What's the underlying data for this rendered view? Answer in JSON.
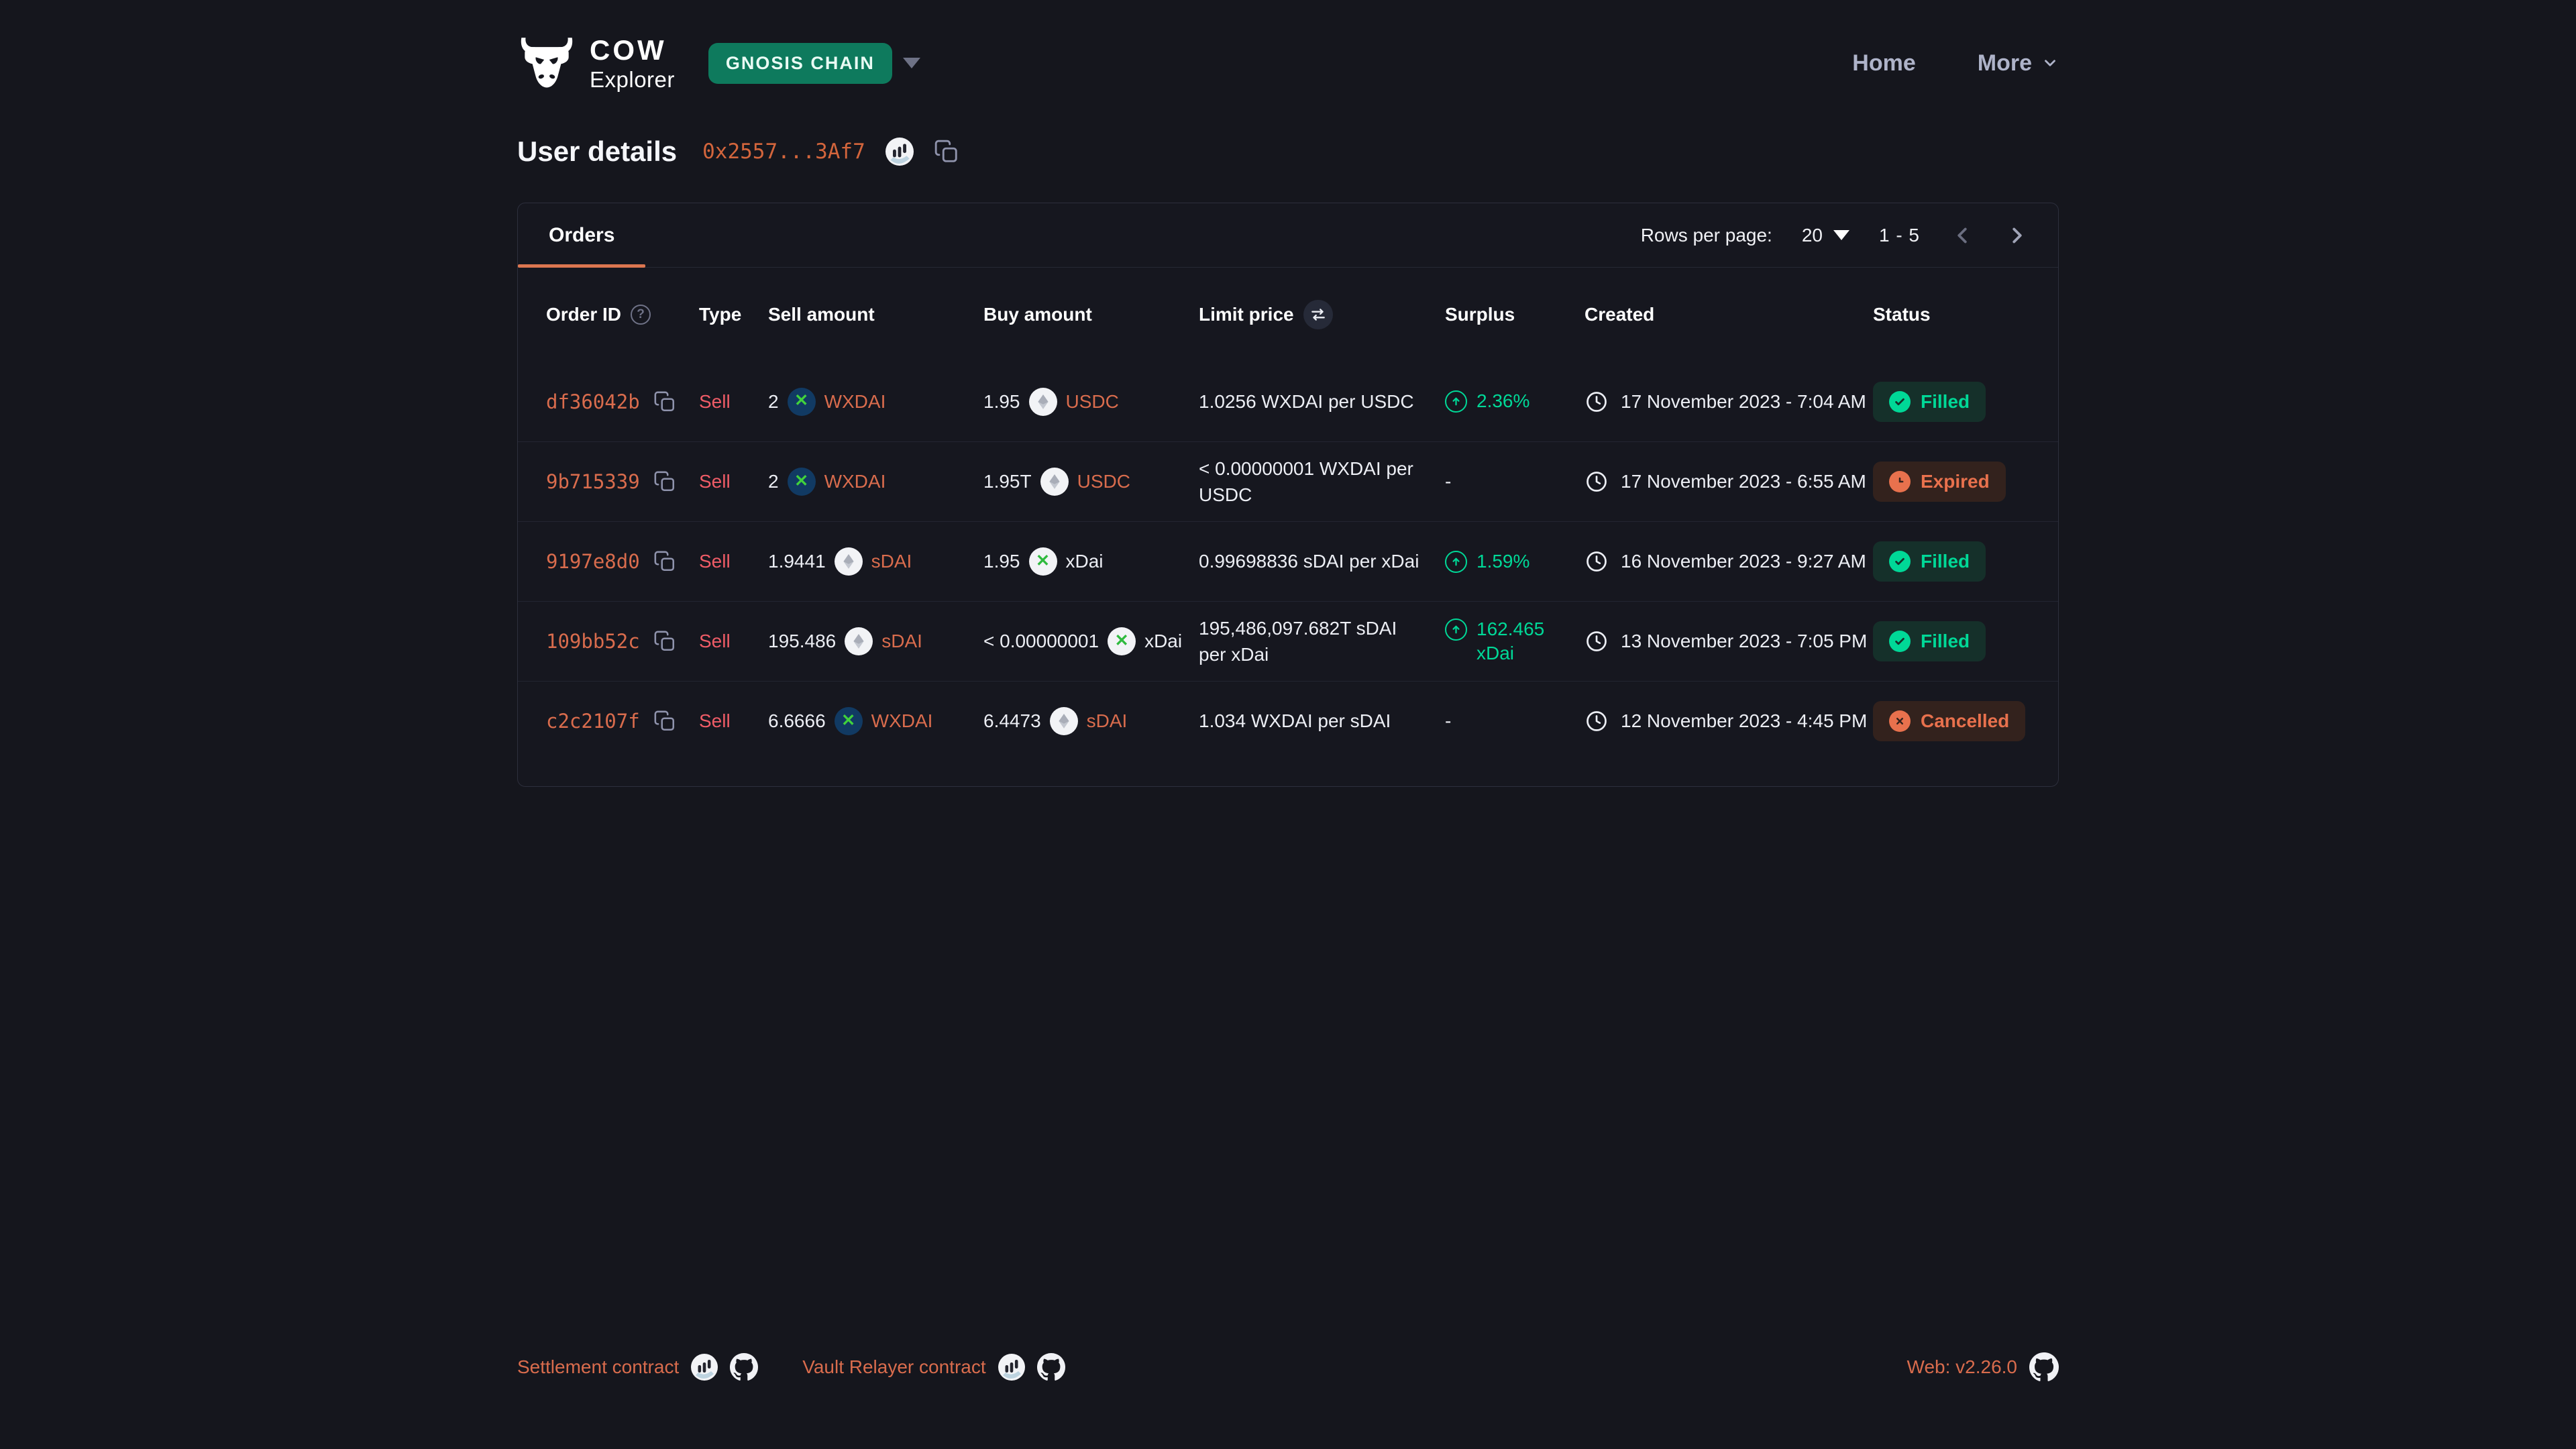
{
  "header": {
    "logo_word": "COW",
    "logo_sub": "Explorer",
    "network_badge": "GNOSIS CHAIN",
    "nav": [
      {
        "label": "Home"
      },
      {
        "label": "More"
      }
    ]
  },
  "page": {
    "title": "User details",
    "address": "0x2557...3Af7"
  },
  "table": {
    "tab": "Orders",
    "pagination": {
      "rows_per_page_label": "Rows per page:",
      "rows_per_page_value": "20",
      "range": "1 - 5"
    },
    "columns": [
      "Order ID",
      "Type",
      "Sell amount",
      "Buy amount",
      "Limit price",
      "Surplus",
      "Created",
      "Status"
    ],
    "rows": [
      {
        "order_id": "df36042b",
        "type": "Sell",
        "sell": {
          "amount": "2",
          "token": "WXDAI",
          "icon": "wxdai",
          "link": true
        },
        "buy": {
          "amount": "1.95",
          "token": "USDC",
          "icon": "eth",
          "link": true
        },
        "limit_price": "1.0256 WXDAI per USDC",
        "surplus": "2.36%",
        "created": "17 November 2023 - 7:04 AM",
        "status": {
          "label": "Filled",
          "kind": "filled"
        }
      },
      {
        "order_id": "9b715339",
        "type": "Sell",
        "sell": {
          "amount": "2",
          "token": "WXDAI",
          "icon": "wxdai",
          "link": true
        },
        "buy": {
          "amount": "1.95T",
          "token": "USDC",
          "icon": "eth",
          "link": true
        },
        "limit_price": "< 0.00000001 WXDAI per USDC",
        "surplus": "-",
        "created": "17 November 2023 - 6:55 AM",
        "status": {
          "label": "Expired",
          "kind": "expired"
        }
      },
      {
        "order_id": "9197e8d0",
        "type": "Sell",
        "sell": {
          "amount": "1.9441",
          "token": "sDAI",
          "icon": "eth",
          "link": true
        },
        "buy": {
          "amount": "1.95",
          "token": "xDai",
          "icon": "xdai",
          "link": false
        },
        "limit_price": "0.99698836 sDAI per xDai",
        "surplus": "1.59%",
        "created": "16 November 2023 - 9:27 AM",
        "status": {
          "label": "Filled",
          "kind": "filled"
        }
      },
      {
        "order_id": "109bb52c",
        "type": "Sell",
        "sell": {
          "amount": "195.486",
          "token": "sDAI",
          "icon": "eth",
          "link": true
        },
        "buy": {
          "amount": "< 0.00000001",
          "token": "xDai",
          "icon": "xdai",
          "link": false
        },
        "limit_price": "195,486,097.682T sDAI per xDai",
        "surplus": "162.465 xDai",
        "created": "13 November 2023 - 7:05 PM",
        "status": {
          "label": "Filled",
          "kind": "filled"
        }
      },
      {
        "order_id": "c2c2107f",
        "type": "Sell",
        "sell": {
          "amount": "6.6666",
          "token": "WXDAI",
          "icon": "wxdai",
          "link": true
        },
        "buy": {
          "amount": "6.4473",
          "token": "sDAI",
          "icon": "eth",
          "link": true
        },
        "limit_price": "1.034 WXDAI per sDAI",
        "surplus": "-",
        "created": "12 November 2023 - 4:45 PM",
        "status": {
          "label": "Cancelled",
          "kind": "cancelled"
        }
      }
    ]
  },
  "footer": {
    "links": [
      {
        "label": "Settlement contract"
      },
      {
        "label": "Vault Relayer contract"
      }
    ],
    "version": "Web: v2.26.0"
  },
  "colors": {
    "background": "#15161d",
    "accent_orange": "#d96c4d",
    "tab_underline": "#dc7650",
    "sell_red": "#f05c67",
    "green": "#00d897",
    "network_badge_bg": "#0e7a5d",
    "badge_filled_bg": "#15302a",
    "badge_warn_bg": "#33221d",
    "card_border": "#2d2f3d"
  }
}
